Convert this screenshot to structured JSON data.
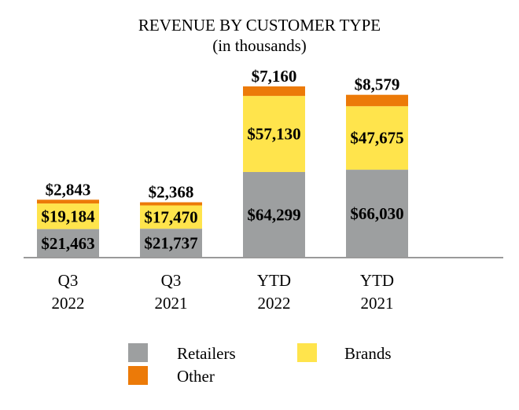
{
  "chart_data": {
    "type": "bar",
    "stacked": true,
    "title": "REVENUE BY CUSTOMER TYPE",
    "subtitle": "(in thousands)",
    "categories": [
      [
        "Q3",
        "2022"
      ],
      [
        "Q3",
        "2021"
      ],
      [
        "YTD",
        "2022"
      ],
      [
        "YTD",
        "2021"
      ]
    ],
    "series": [
      {
        "name": "Retailers",
        "color": "#9d9fa0",
        "values": [
          21463,
          21737,
          64299,
          66030
        ],
        "labels": [
          "$21,463",
          "$21,737",
          "$64,299",
          "$66,030"
        ]
      },
      {
        "name": "Brands",
        "color": "#ffe44c",
        "values": [
          19184,
          17470,
          57130,
          47675
        ],
        "labels": [
          "$19,184",
          "$17,470",
          "$57,130",
          "$47,675"
        ]
      },
      {
        "name": "Other",
        "color": "#ec7a08",
        "values": [
          2843,
          2368,
          7160,
          8579
        ],
        "labels": [
          "$2,843",
          "$2,368",
          "$7,160",
          "$8,579"
        ]
      }
    ],
    "legend_position": "bottom",
    "grid": false,
    "y_axis_visible": false
  }
}
